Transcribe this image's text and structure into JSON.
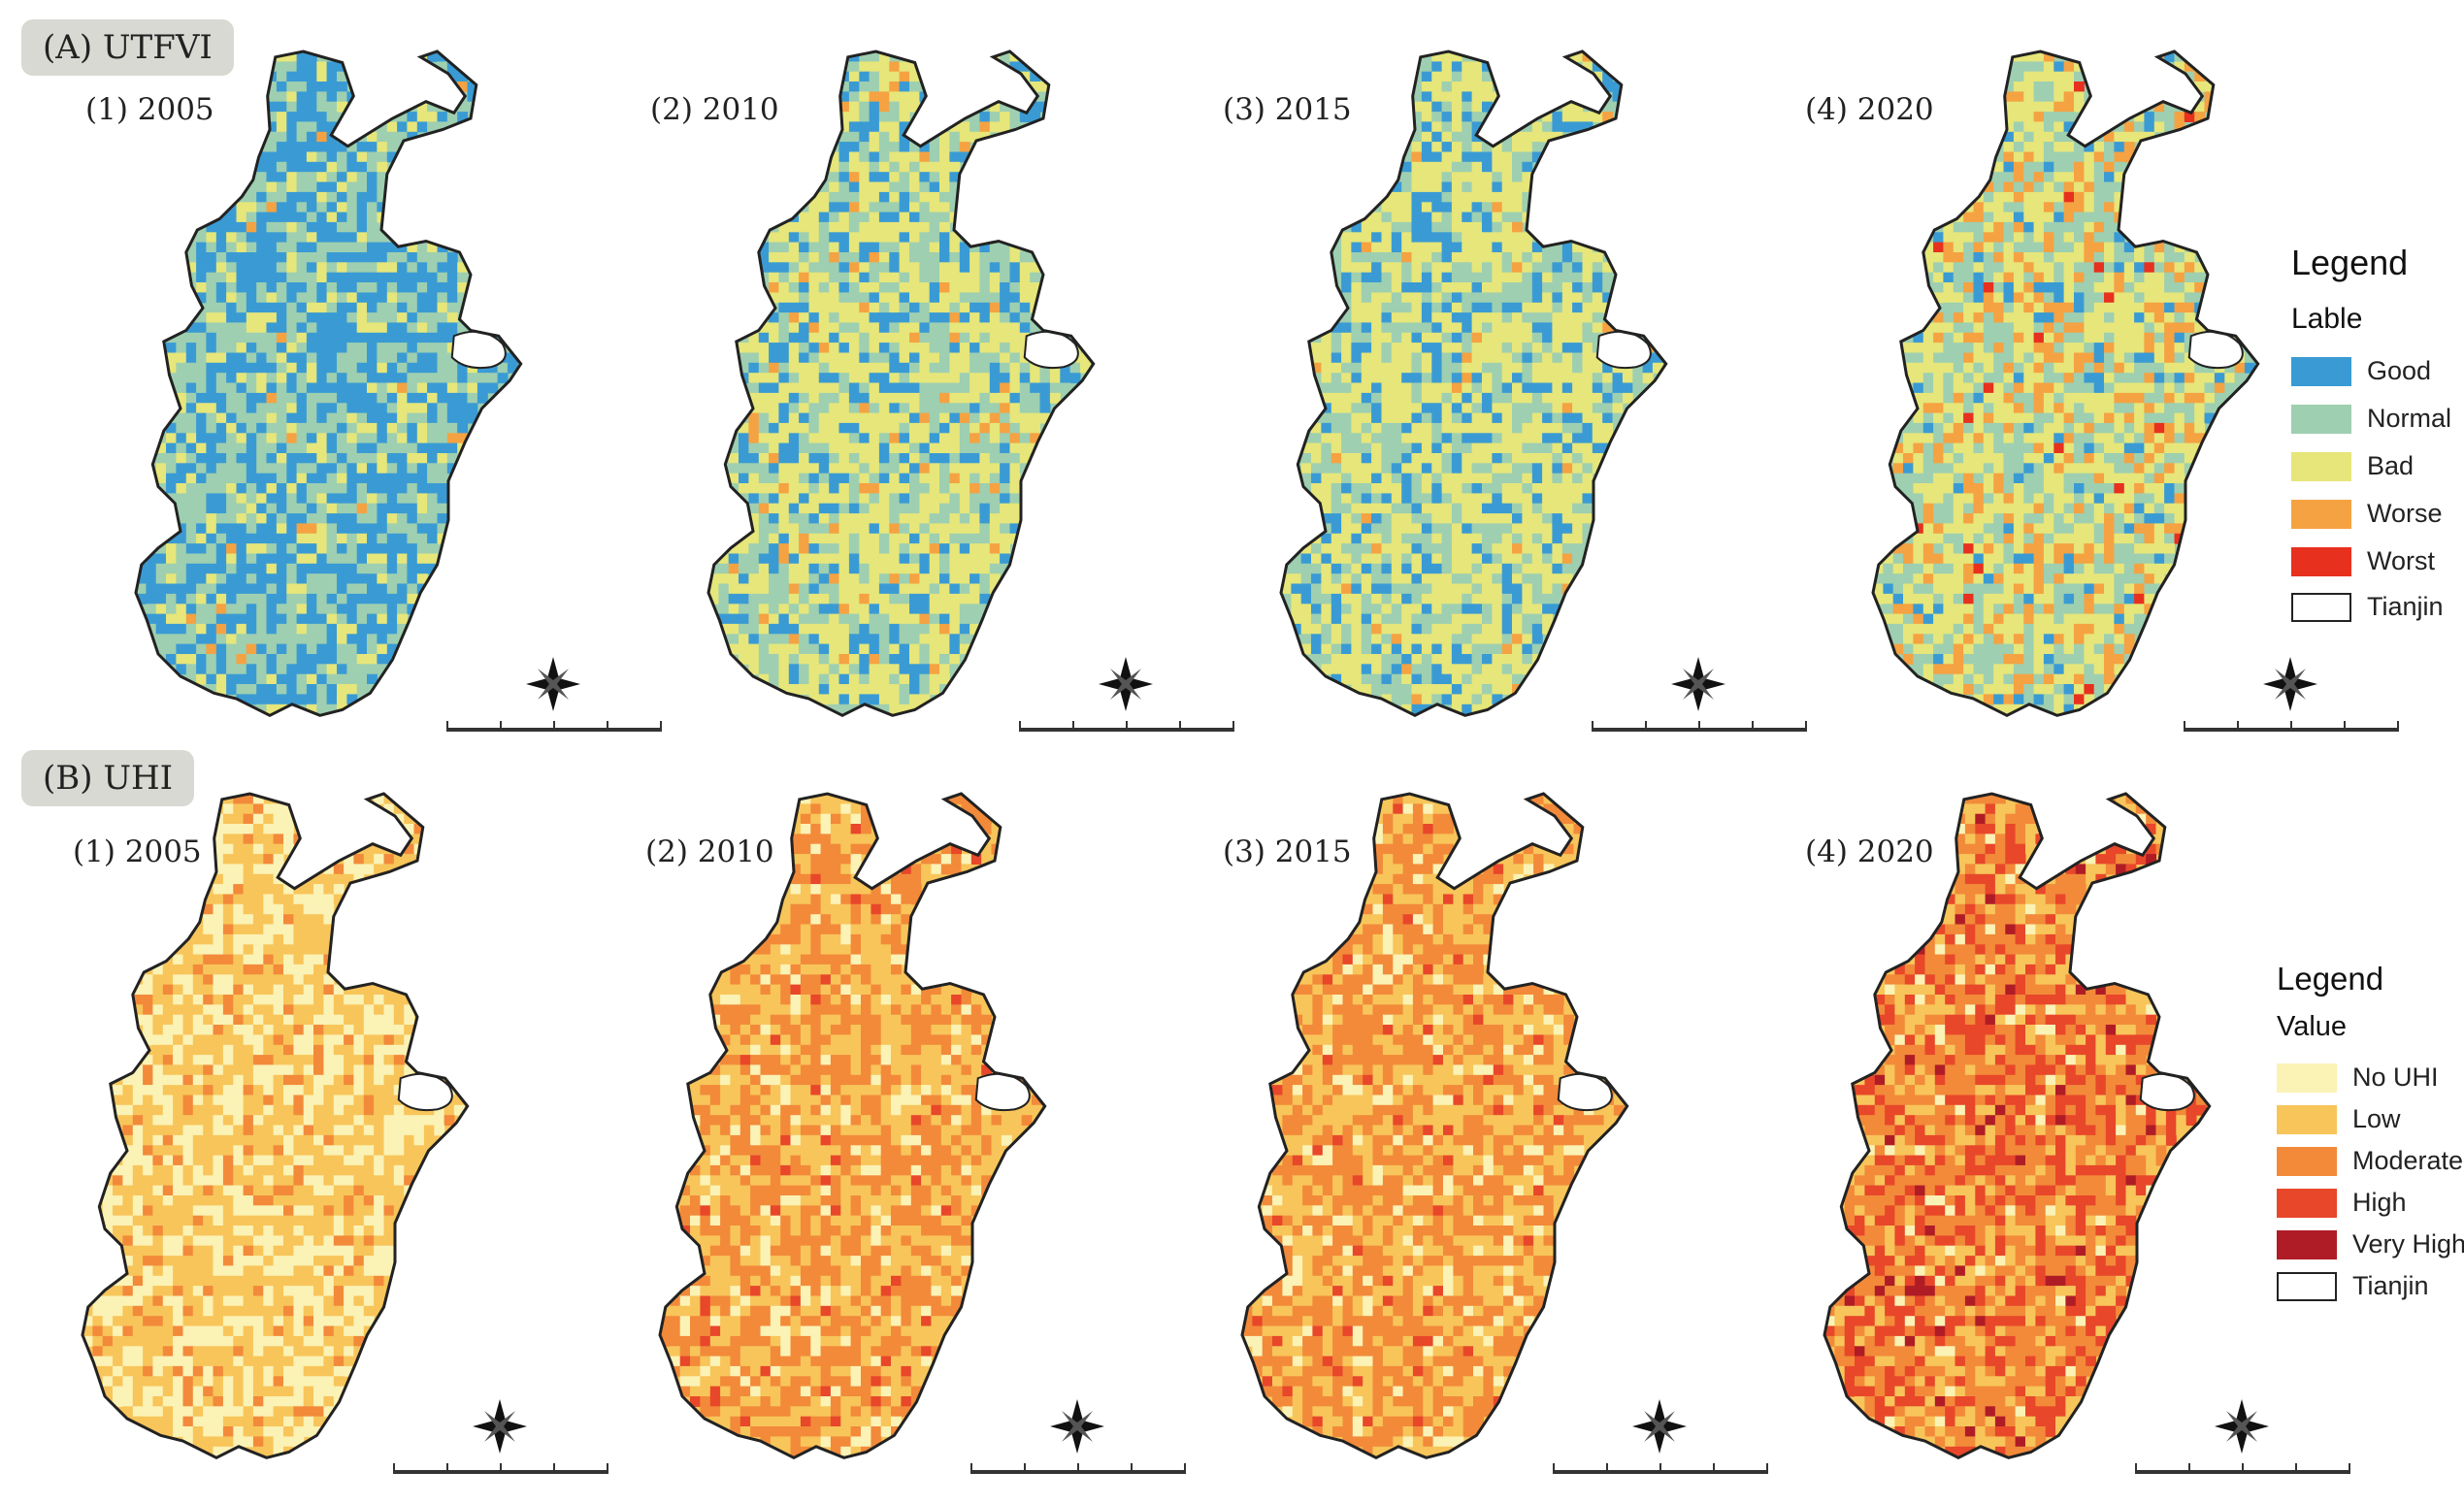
{
  "panels": [
    {
      "id": "A",
      "tag": "(A) UTFVI",
      "maps": [
        {
          "title": "(1) 2005",
          "classes": [
            "Good",
            "Normal",
            "Bad",
            "Worse"
          ],
          "weights": [
            0.44,
            0.4,
            0.14,
            0.02
          ]
        },
        {
          "title": "(2) 2010",
          "classes": [
            "Good",
            "Normal",
            "Bad",
            "Worse"
          ],
          "weights": [
            0.2,
            0.3,
            0.45,
            0.05
          ]
        },
        {
          "title": "(3) 2015",
          "classes": [
            "Good",
            "Normal",
            "Bad",
            "Worse"
          ],
          "weights": [
            0.18,
            0.3,
            0.5,
            0.02
          ]
        },
        {
          "title": "(4) 2020",
          "classes": [
            "Good",
            "Normal",
            "Bad",
            "Worse",
            "Worst"
          ],
          "weights": [
            0.06,
            0.32,
            0.4,
            0.2,
            0.02
          ]
        }
      ],
      "legend": {
        "title": "Legend",
        "subtitle": "Lable",
        "items": [
          {
            "label": "Good",
            "color": "#3a9bd4"
          },
          {
            "label": "Normal",
            "color": "#9ecfb0"
          },
          {
            "label": "Bad",
            "color": "#e6e67a"
          },
          {
            "label": "Worse",
            "color": "#f5a242"
          },
          {
            "label": "Worst",
            "color": "#e8301e"
          },
          {
            "label": "Tianjin",
            "color": "#ffffff",
            "outline": true
          }
        ]
      }
    },
    {
      "id": "B",
      "tag": "(B) UHI",
      "maps": [
        {
          "title": "(1) 2005",
          "classes": [
            "No UHI",
            "Low",
            "Moderate"
          ],
          "weights": [
            0.4,
            0.48,
            0.12
          ]
        },
        {
          "title": "(2) 2010",
          "classes": [
            "No UHI",
            "Low",
            "Moderate",
            "High"
          ],
          "weights": [
            0.1,
            0.42,
            0.44,
            0.04
          ]
        },
        {
          "title": "(3) 2015",
          "classes": [
            "No UHI",
            "Low",
            "Moderate",
            "High"
          ],
          "weights": [
            0.1,
            0.38,
            0.48,
            0.04
          ]
        },
        {
          "title": "(4) 2020",
          "classes": [
            "No UHI",
            "Low",
            "Moderate",
            "High",
            "Very High"
          ],
          "weights": [
            0.04,
            0.24,
            0.4,
            0.28,
            0.04
          ]
        }
      ],
      "legend": {
        "title": "Legend",
        "subtitle": "Value",
        "items": [
          {
            "label": "No UHI",
            "color": "#fbf2b5"
          },
          {
            "label": "Low",
            "color": "#f8c55a"
          },
          {
            "label": "Moderate",
            "color": "#f28a3a"
          },
          {
            "label": "High",
            "color": "#e8472a"
          },
          {
            "label": "Very High",
            "color": "#b01c26"
          },
          {
            "label": "Tianjin",
            "color": "#ffffff",
            "outline": true
          }
        ]
      }
    }
  ],
  "icons": {
    "north_arrow": "compass-rose-icon",
    "scale": "scale-bar"
  }
}
